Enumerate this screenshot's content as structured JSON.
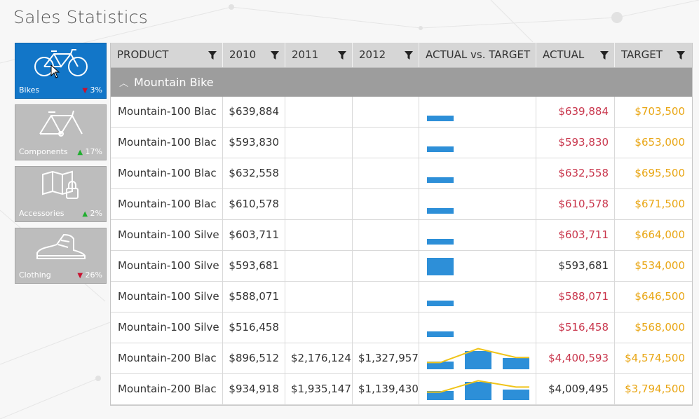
{
  "title": "Sales Statistics",
  "colors": {
    "active_tile": "#1276c8",
    "tile": "#bdbdbd",
    "actual_below": "#c9374d",
    "target": "#e9a614",
    "spark_bar": "#2d8fd8",
    "spark_line": "#f0c419",
    "down": "#c8102e",
    "up": "#1fae2e"
  },
  "categories": [
    {
      "label": "Bikes",
      "change": "3%",
      "direction": "down",
      "icon": "bicycle-icon",
      "active": true
    },
    {
      "label": "Components",
      "change": "17%",
      "direction": "up",
      "icon": "bike-frame-icon",
      "active": false
    },
    {
      "label": "Accessories",
      "change": "2%",
      "direction": "up",
      "icon": "map-lock-icon",
      "active": false
    },
    {
      "label": "Clothing",
      "change": "26%",
      "direction": "down",
      "icon": "sneaker-icon",
      "active": false
    }
  ],
  "columns": [
    "PRODUCT",
    "2010",
    "2011",
    "2012",
    "ACTUAL vs. TARGET",
    "ACTUAL",
    "TARGET"
  ],
  "group": "Mountain Bike",
  "rows": [
    {
      "product": "Mountain-100 Blac",
      "y2010": "$639,884",
      "y2011": "",
      "y2012": "",
      "actual": "$639,884",
      "target": "$703,500",
      "below": true
    },
    {
      "product": "Mountain-100 Blac",
      "y2010": "$593,830",
      "y2011": "",
      "y2012": "",
      "actual": "$593,830",
      "target": "$653,000",
      "below": true
    },
    {
      "product": "Mountain-100 Blac",
      "y2010": "$632,558",
      "y2011": "",
      "y2012": "",
      "actual": "$632,558",
      "target": "$695,500",
      "below": true
    },
    {
      "product": "Mountain-100 Blac",
      "y2010": "$610,578",
      "y2011": "",
      "y2012": "",
      "actual": "$610,578",
      "target": "$671,500",
      "below": true
    },
    {
      "product": "Mountain-100 Silve",
      "y2010": "$603,711",
      "y2011": "",
      "y2012": "",
      "actual": "$603,711",
      "target": "$664,000",
      "below": true
    },
    {
      "product": "Mountain-100 Silve",
      "y2010": "$593,681",
      "y2011": "",
      "y2012": "",
      "actual": "$593,681",
      "target": "$534,000",
      "below": false
    },
    {
      "product": "Mountain-100 Silve",
      "y2010": "$588,071",
      "y2011": "",
      "y2012": "",
      "actual": "$588,071",
      "target": "$646,500",
      "below": true
    },
    {
      "product": "Mountain-100 Silve",
      "y2010": "$516,458",
      "y2011": "",
      "y2012": "",
      "actual": "$516,458",
      "target": "$568,000",
      "below": true
    },
    {
      "product": "Mountain-200 Blac",
      "y2010": "$896,512",
      "y2011": "$2,176,124",
      "y2012": "$1,327,957",
      "actual": "$4,400,593",
      "target": "$4,574,500",
      "below": true
    },
    {
      "product": "Mountain-200 Blac",
      "y2010": "$934,918",
      "y2011": "$1,935,147",
      "y2012": "$1,139,430",
      "actual": "$4,009,495",
      "target": "$3,794,500",
      "below": false
    }
  ],
  "sparklines": [
    {
      "bars": [
        {
          "actual": 639884,
          "target": 703500
        }
      ],
      "line": []
    },
    {
      "bars": [
        {
          "actual": 593830,
          "target": 653000
        }
      ],
      "line": []
    },
    {
      "bars": [
        {
          "actual": 632558,
          "target": 695500
        }
      ],
      "line": []
    },
    {
      "bars": [
        {
          "actual": 610578,
          "target": 671500
        }
      ],
      "line": []
    },
    {
      "bars": [
        {
          "actual": 603711,
          "target": 664000
        }
      ],
      "line": []
    },
    {
      "bars": [
        {
          "actual": 593681,
          "target": 534000
        }
      ],
      "line": []
    },
    {
      "bars": [
        {
          "actual": 588071,
          "target": 646500
        }
      ],
      "line": []
    },
    {
      "bars": [
        {
          "actual": 516458,
          "target": 568000
        }
      ],
      "line": []
    },
    {
      "bars": [
        {
          "actual": 896512
        },
        {
          "actual": 2176124
        },
        {
          "actual": 1327957
        }
      ],
      "line": [
        0.35,
        0.9,
        0.55
      ]
    },
    {
      "bars": [
        {
          "actual": 934918
        },
        {
          "actual": 1935147
        },
        {
          "actual": 1139430
        }
      ],
      "line": [
        0.4,
        0.85,
        0.6
      ]
    }
  ]
}
